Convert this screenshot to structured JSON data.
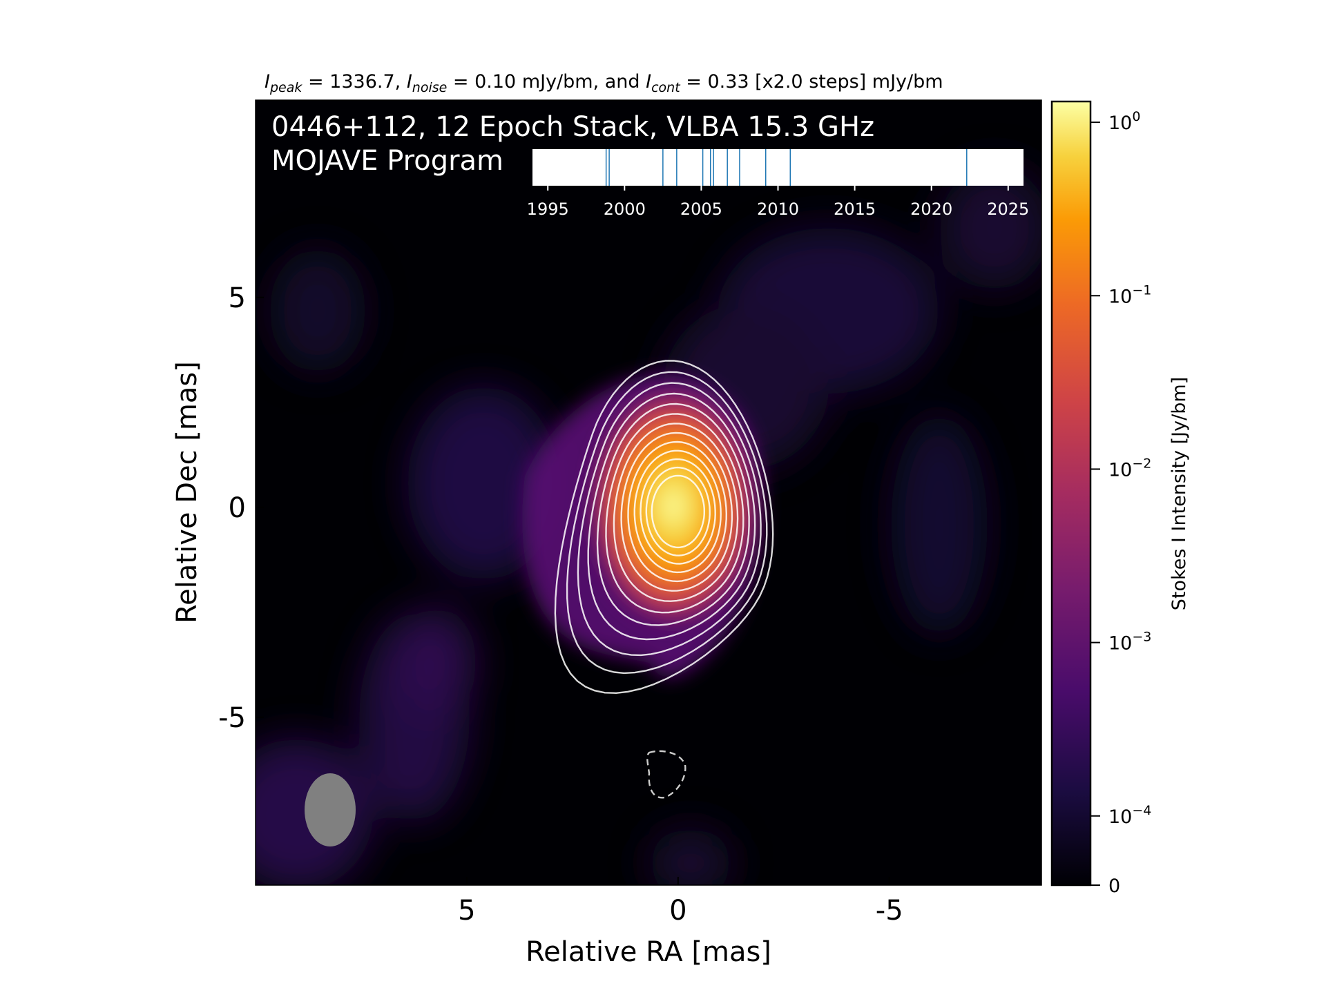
{
  "chart_data": {
    "type": "heatmap",
    "header": {
      "peak_sym": "I",
      "peak_sub": "peak",
      "peak_text": " = 1336.7, ",
      "noise_sym": "I",
      "noise_sub": "noise",
      "noise_text": " = 0.10 mJy/bm, and ",
      "cont_sym": "I",
      "cont_sub": "cont",
      "cont_text": " = 0.33 [x2.0 steps] mJy/bm"
    },
    "title_line1": "0446+112, 12 Epoch Stack, VLBA 15.3 GHz",
    "title_line2": "MOJAVE Program",
    "xlabel": "Relative RA [mas]",
    "ylabel": "Relative Dec [mas]",
    "xlim": [
      10,
      -8.6
    ],
    "ylim": [
      -9.0,
      9.7
    ],
    "xticks": [
      5,
      0,
      -5
    ],
    "xtick_labels": [
      "5",
      "0",
      "-5"
    ],
    "yticks": [
      5,
      0,
      -5
    ],
    "ytick_labels": [
      "5",
      "0",
      "-5"
    ],
    "source": {
      "ra": 0.0,
      "dec": -0.1
    },
    "contour_base_mJy": 0.33,
    "contour_step": 2.0,
    "contour_count": 13,
    "negative_contour": {
      "ra": 0.2,
      "dec": -6.4
    },
    "beam": {
      "major_mas": 1.75,
      "minor_mas": 1.2,
      "pa_deg": 0
    },
    "colorbar": {
      "label": "Stokes I Intensity [Jy/bm]",
      "scale": "log",
      "colormap": "inferno",
      "ticks": [
        {
          "value": 1,
          "base": "10",
          "exp": "0"
        },
        {
          "value": 0.1,
          "base": "10",
          "exp": "−1"
        },
        {
          "value": 0.01,
          "base": "10",
          "exp": "−2"
        },
        {
          "value": 0.001,
          "base": "10",
          "exp": "−3"
        },
        {
          "value": 0.0001,
          "base": "10",
          "exp": "−4"
        },
        {
          "value": 0,
          "base": "0",
          "exp": ""
        }
      ]
    },
    "epoch_timeline": {
      "xlim": [
        1994,
        2026
      ],
      "ticks": [
        1995,
        2000,
        2005,
        2010,
        2015,
        2020,
        2025
      ],
      "tick_labels": [
        "1995",
        "2000",
        "2005",
        "2010",
        "2015",
        "2020",
        "2025"
      ],
      "epochs": [
        1998.8,
        1999.0,
        2002.5,
        2003.4,
        2005.1,
        2005.6,
        2005.8,
        2006.7,
        2007.5,
        2009.2,
        2010.8,
        2022.3
      ]
    },
    "colors": {
      "background": "#000004",
      "contour": "#ffffff",
      "epoch_line": "#1f77b4",
      "beam": "#808080"
    }
  }
}
